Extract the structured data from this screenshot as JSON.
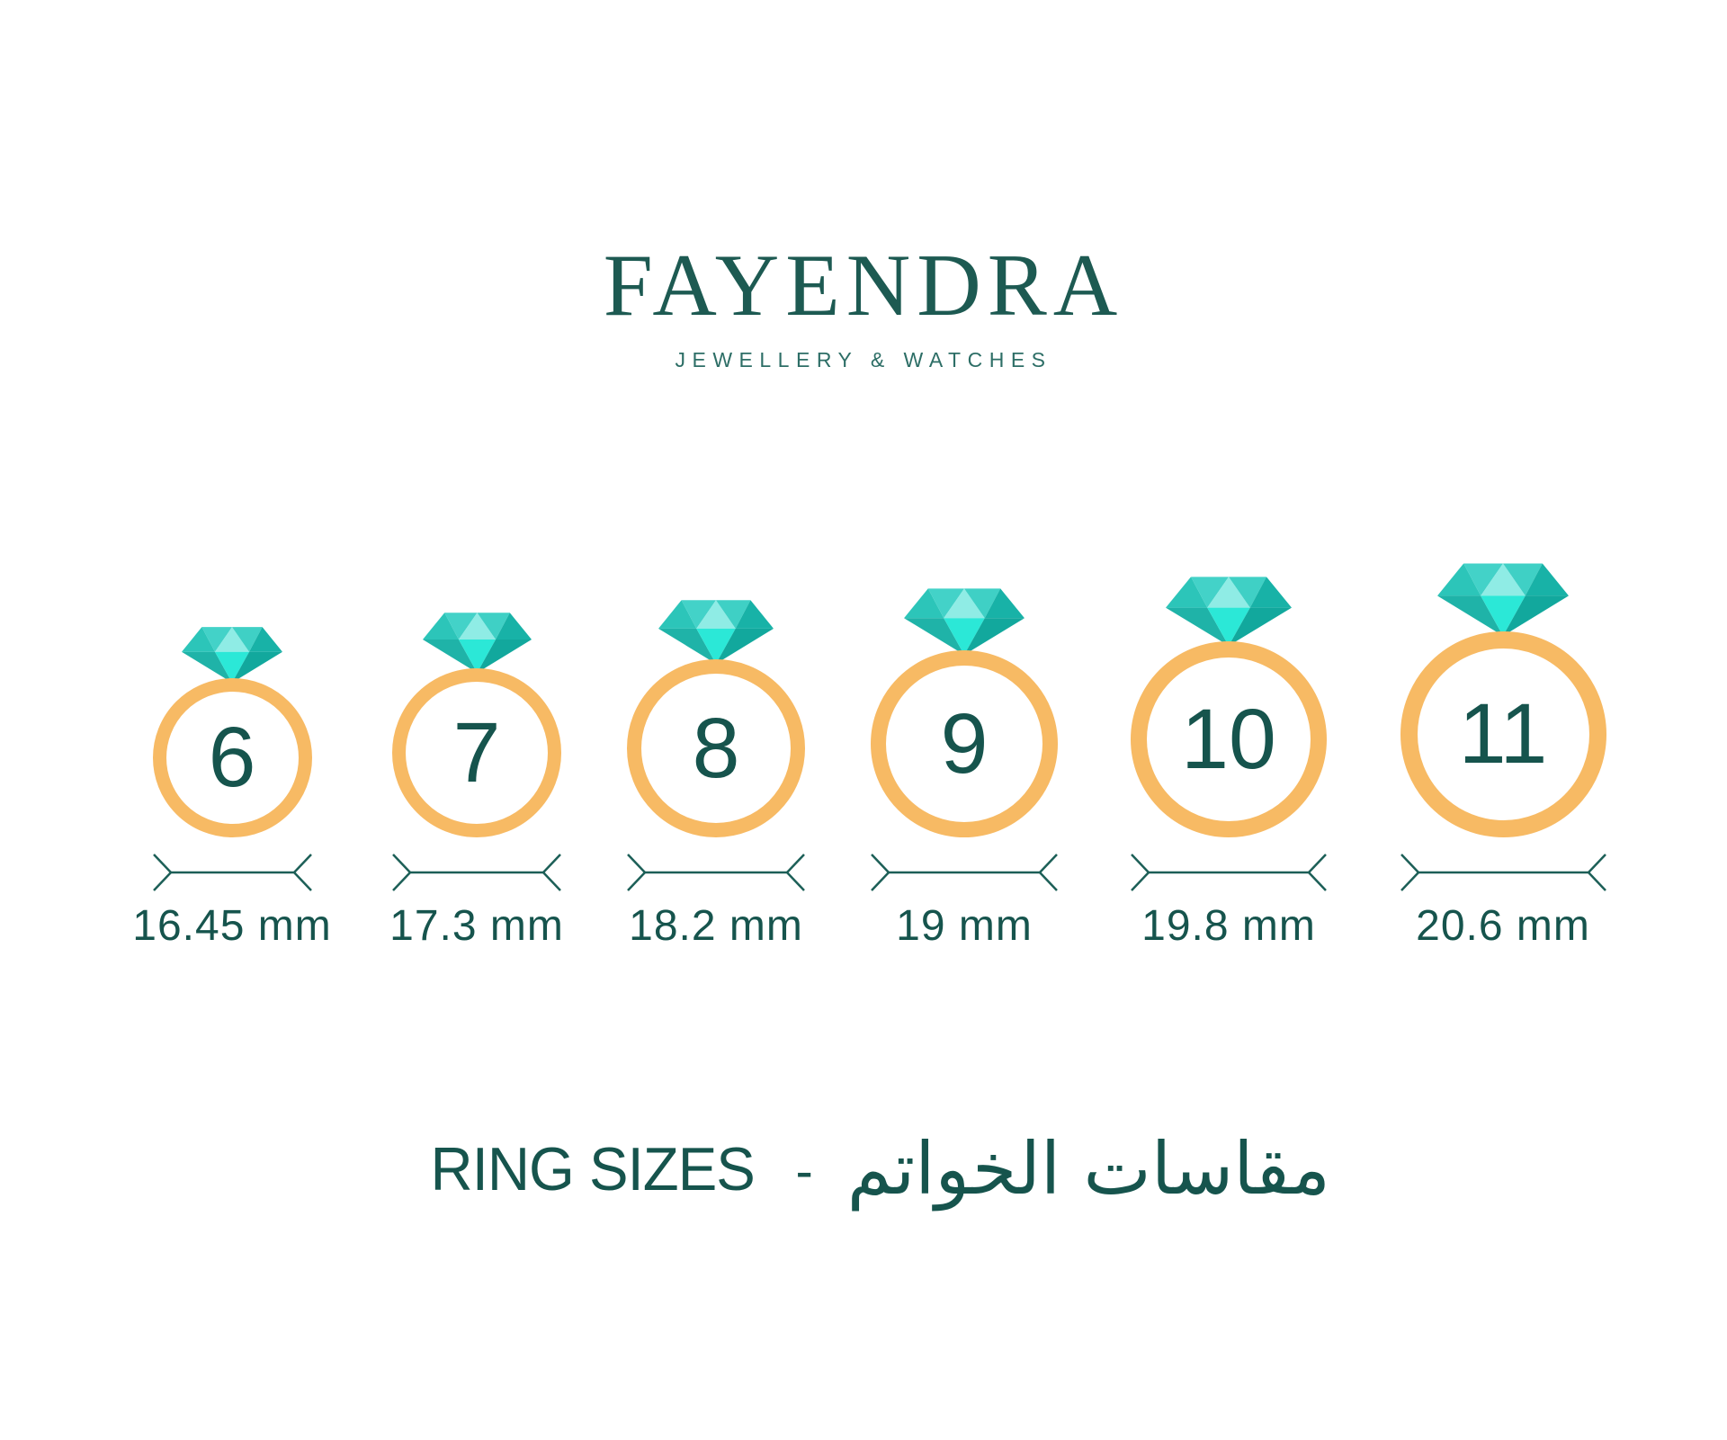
{
  "brand": {
    "name": "FAYENDRA",
    "tagline": "JEWELLERY & WATCHES"
  },
  "rings": [
    {
      "size": "6",
      "diameter": "16.45 mm"
    },
    {
      "size": "7",
      "diameter": "17.3 mm"
    },
    {
      "size": "8",
      "diameter": "18.2 mm"
    },
    {
      "size": "9",
      "diameter": "19 mm"
    },
    {
      "size": "10",
      "diameter": "19.8 mm"
    },
    {
      "size": "11",
      "diameter": "20.6 mm"
    }
  ],
  "heading": {
    "en": "RING SIZES",
    "separator": "-",
    "ar": "مقاسات الخواتم"
  },
  "colors": {
    "logo_teal": "#1D5A52",
    "tagline_teal": "#2D6E66",
    "text_dark_teal": "#16544D",
    "dimension_line": "#1C5F57",
    "band_gold": "#F7BA64",
    "diamond_facets": {
      "crown_left": "#2CC5B9",
      "crown_mid_left": "#43D2C8",
      "crown_center": "#8FECE5",
      "crown_mid_right": "#3FD0C5",
      "crown_right": "#18B2A7",
      "pavilion_left": "#1FB3A8",
      "pavilion_center": "#2BE8D7",
      "pavilion_right": "#12A89D"
    }
  }
}
